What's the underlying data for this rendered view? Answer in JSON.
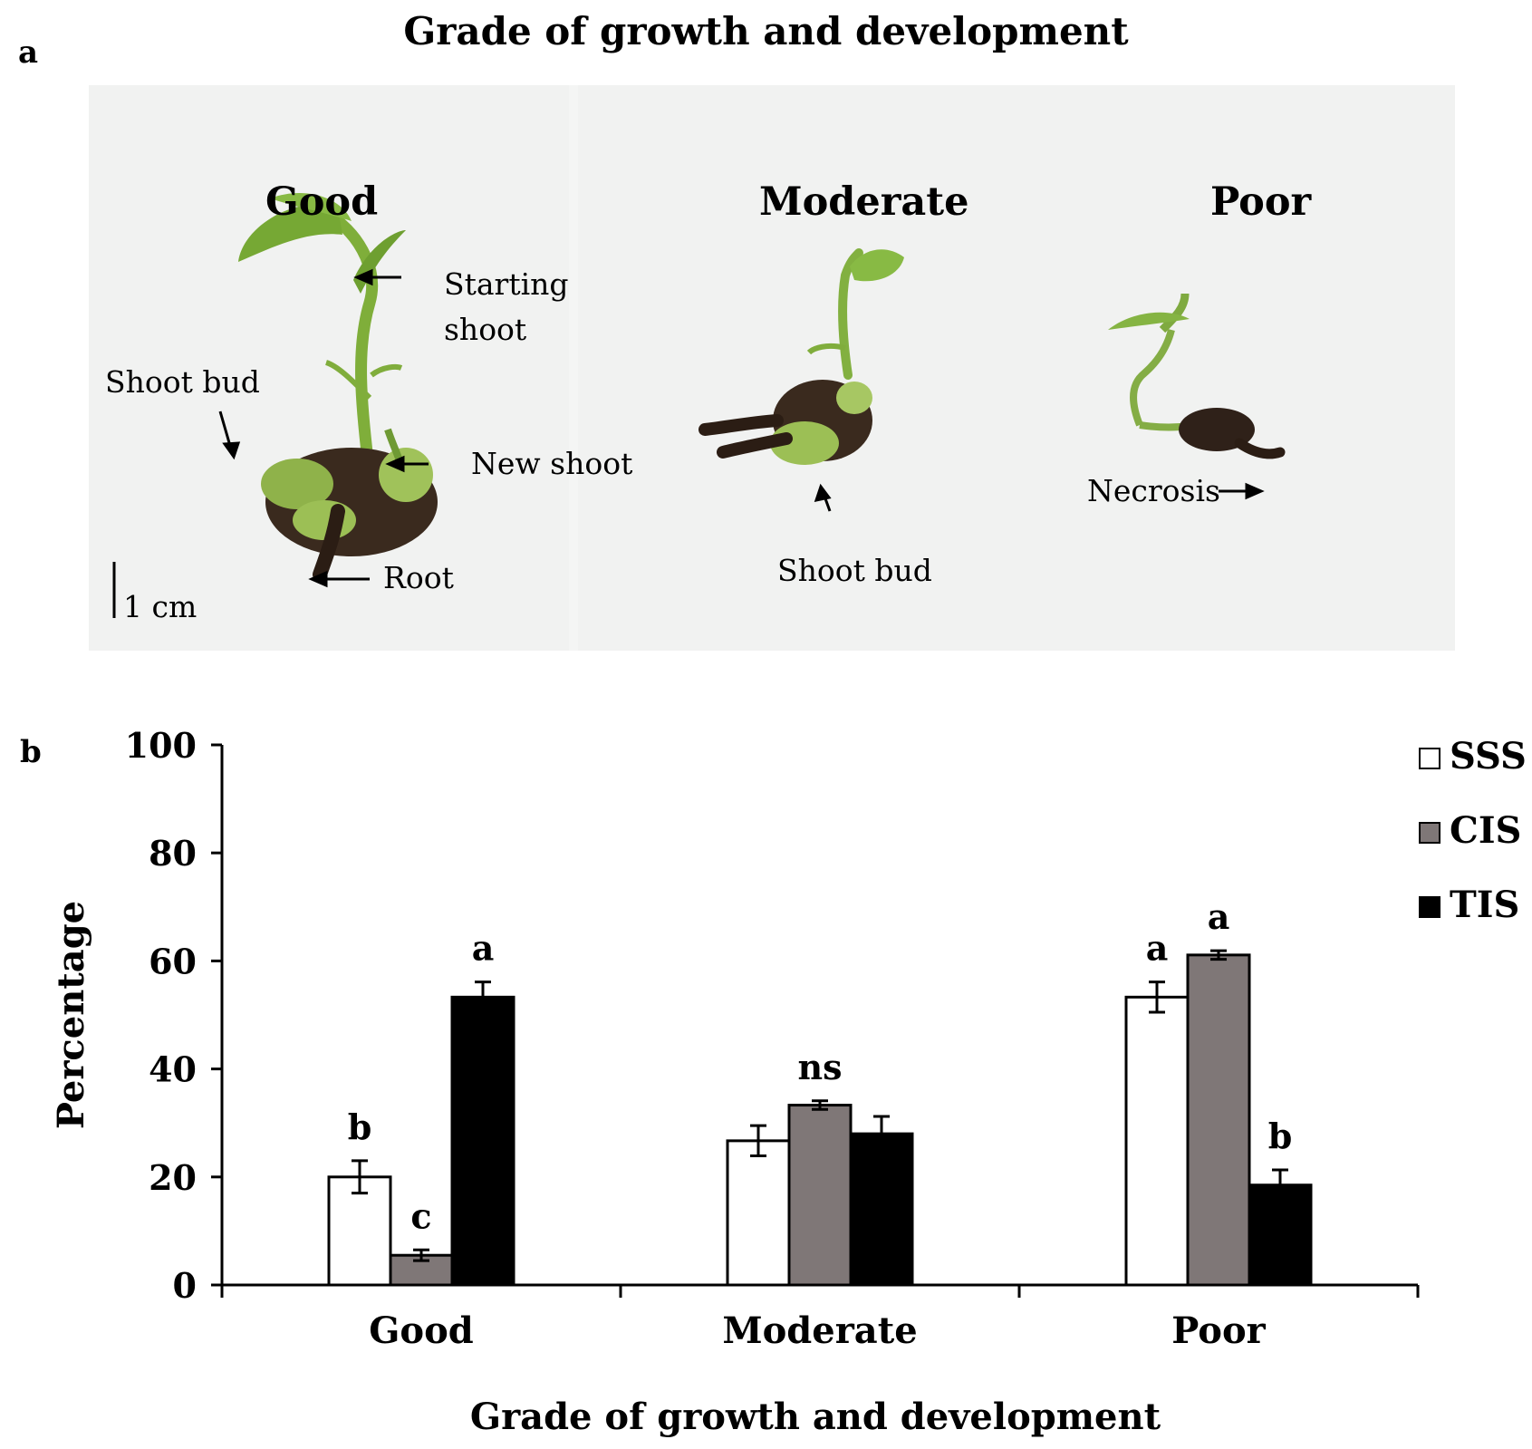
{
  "figure": {
    "panel_a_label": "a",
    "panel_b_label": "b",
    "top_title": "Grade of growth and development"
  },
  "photo": {
    "grades": [
      "Good",
      "Moderate",
      "Poor"
    ],
    "annotations": {
      "starting_shoot_line1": "Starting",
      "starting_shoot_line2": "shoot",
      "shoot_bud_good": "Shoot bud",
      "new_shoot": "New shoot",
      "root": "Root",
      "scale_bar": "1 cm",
      "shoot_bud_moderate": "Shoot bud",
      "necrosis": "Necrosis"
    }
  },
  "chart_data": {
    "type": "bar",
    "title": "",
    "xlabel": "Grade of growth and development",
    "ylabel": "Percentage",
    "ylim": [
      0,
      100
    ],
    "yticks": [
      0,
      20,
      40,
      60,
      80,
      100
    ],
    "categories": [
      "Good",
      "Moderate",
      "Poor"
    ],
    "series": [
      {
        "name": "SSS",
        "color": "#ffffff",
        "values": [
          20,
          26.7,
          53.3
        ],
        "errors": [
          3,
          2.8,
          2.8
        ],
        "letters": [
          "b",
          "",
          "a"
        ]
      },
      {
        "name": "CIS",
        "color": "#7f7777",
        "values": [
          5.5,
          33.3,
          61.1
        ],
        "errors": [
          1,
          0.8,
          0.8
        ],
        "letters": [
          "c",
          "ns",
          "a"
        ]
      },
      {
        "name": "TIS",
        "color": "#000000",
        "values": [
          53.3,
          28,
          18.5
        ],
        "errors": [
          2.8,
          3.2,
          2.8
        ],
        "letters": [
          "a",
          "",
          "b"
        ]
      }
    ],
    "legend_position": "top-right"
  }
}
